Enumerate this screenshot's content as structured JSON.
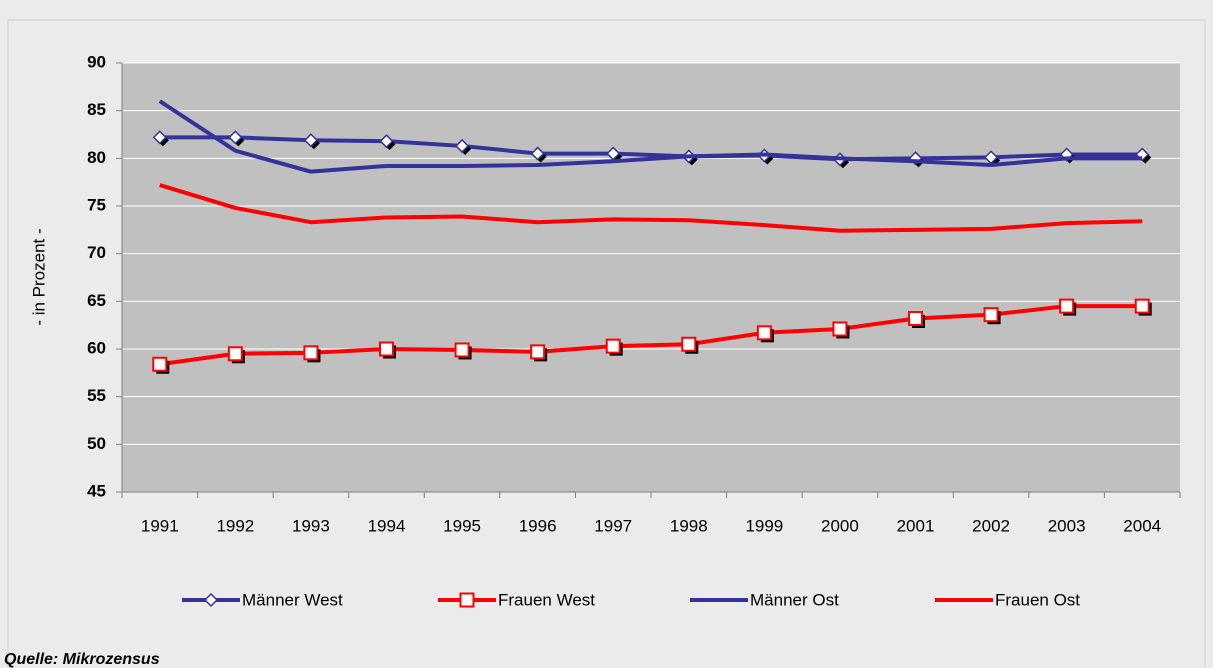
{
  "chart_data": {
    "type": "line",
    "y_label": "- in Prozent -",
    "source": "Quelle: Mikrozensus",
    "categories": [
      "1991",
      "1992",
      "1993",
      "1994",
      "1995",
      "1996",
      "1997",
      "1998",
      "1999",
      "2000",
      "2001",
      "2002",
      "2003",
      "2004"
    ],
    "series": [
      {
        "name": "Männer West",
        "color": "#333399",
        "marker": "diamond",
        "values": [
          82.2,
          82.2,
          81.9,
          81.8,
          81.3,
          80.5,
          80.5,
          80.2,
          80.3,
          79.9,
          80.0,
          80.1,
          80.4,
          80.4
        ]
      },
      {
        "name": "Frauen West",
        "color": "#ff0000",
        "marker": "square",
        "values": [
          58.4,
          59.5,
          59.6,
          60.0,
          59.9,
          59.7,
          60.3,
          60.5,
          61.7,
          62.1,
          63.2,
          63.6,
          64.5,
          64.5
        ]
      },
      {
        "name": "Männer Ost",
        "color": "#333399",
        "marker": "none",
        "values": [
          86.0,
          80.8,
          78.6,
          79.2,
          79.2,
          79.3,
          79.7,
          80.2,
          80.4,
          80.0,
          79.7,
          79.3,
          80.0,
          80.0
        ]
      },
      {
        "name": "Frauen Ost",
        "color": "#ff0000",
        "marker": "none",
        "values": [
          77.2,
          74.8,
          73.3,
          73.8,
          73.9,
          73.3,
          73.6,
          73.5,
          73.0,
          72.4,
          72.5,
          72.6,
          73.2,
          73.4
        ]
      }
    ],
    "ylim": [
      45,
      90
    ],
    "yticks": [
      45,
      50,
      55,
      60,
      65,
      70,
      75,
      80,
      85,
      90
    ],
    "grid": true,
    "legend": "bottom"
  }
}
